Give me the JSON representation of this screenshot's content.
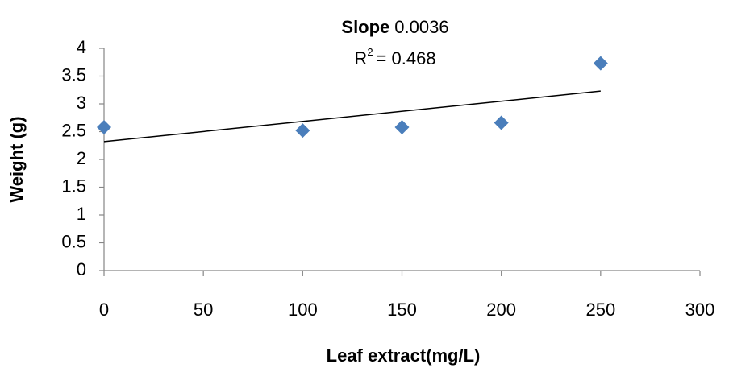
{
  "chart_data": {
    "type": "scatter",
    "x_label": "Leaf extract(mg/L)",
    "y_label": "Weight (g)",
    "annotation": {
      "slope_label": "Slope",
      "slope_value": "0.0036",
      "r2_base": "R",
      "r2_exp": "2",
      "r2_value": "= 0.468"
    },
    "x": [
      0,
      100,
      150,
      200,
      250
    ],
    "series": [
      {
        "color": "#4a7ebb",
        "values": [
          2.58,
          2.52,
          2.58,
          2.66,
          3.73
        ]
      }
    ],
    "trendline": {
      "x": [
        0,
        250
      ],
      "values": [
        2.32,
        3.23
      ],
      "color": "#000000"
    },
    "xlim": [
      0,
      300
    ],
    "xticks": [
      0,
      50,
      100,
      150,
      200,
      250,
      300
    ],
    "ylim": [
      0,
      4
    ],
    "yticks": [
      0,
      0.5,
      1,
      1.5,
      2,
      2.5,
      3,
      3.5,
      4
    ],
    "grid": false
  }
}
